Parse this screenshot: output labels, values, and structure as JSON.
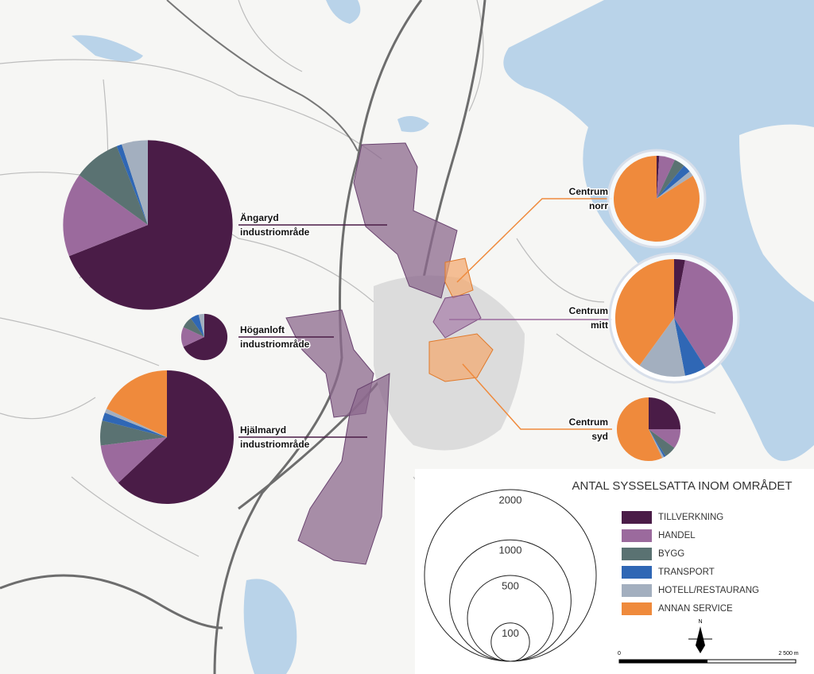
{
  "legend_title": "ANTAL SYSSELSATTA INOM OMRÅDET",
  "categories": [
    {
      "name": "TILLVERKNING",
      "color": "#4a1c47"
    },
    {
      "name": "HANDEL",
      "color": "#9b6a9d"
    },
    {
      "name": "BYGG",
      "color": "#5a7272"
    },
    {
      "name": "TRANSPORT",
      "color": "#2f67b5"
    },
    {
      "name": "HOTELL/RESTAURANG",
      "color": "#a3afbf"
    },
    {
      "name": "ANNAN SERVICE",
      "color": "#ef8a3c"
    }
  ],
  "areas": [
    {
      "label": [
        "Ängaryd",
        "industriområde"
      ],
      "total": 1950,
      "values": [
        69,
        16,
        9,
        1,
        5,
        0
      ]
    },
    {
      "label": [
        "Höganloft",
        "industriområde"
      ],
      "total": 145,
      "values": [
        68,
        14,
        8,
        6,
        4,
        0
      ]
    },
    {
      "label": [
        "Hjälmaryd",
        "industriområde"
      ],
      "total": 1210,
      "values": [
        63,
        10,
        6,
        2,
        1,
        18
      ]
    },
    {
      "label": [
        "Centrum",
        "norr"
      ],
      "total": 500,
      "values": [
        1,
        6,
        4,
        3,
        2,
        84
      ]
    },
    {
      "label": [
        "Centrum",
        "mitt"
      ],
      "total": 940,
      "values": [
        3,
        38,
        0,
        6,
        13,
        40
      ]
    },
    {
      "label": [
        "Centrum",
        "syd"
      ],
      "total": 275,
      "values": [
        25,
        10,
        6,
        1,
        1,
        57
      ]
    }
  ],
  "size_legend": [
    2000,
    1000,
    500,
    100
  ],
  "north": "N",
  "scale_labels": [
    "0",
    "2 500 m"
  ]
}
